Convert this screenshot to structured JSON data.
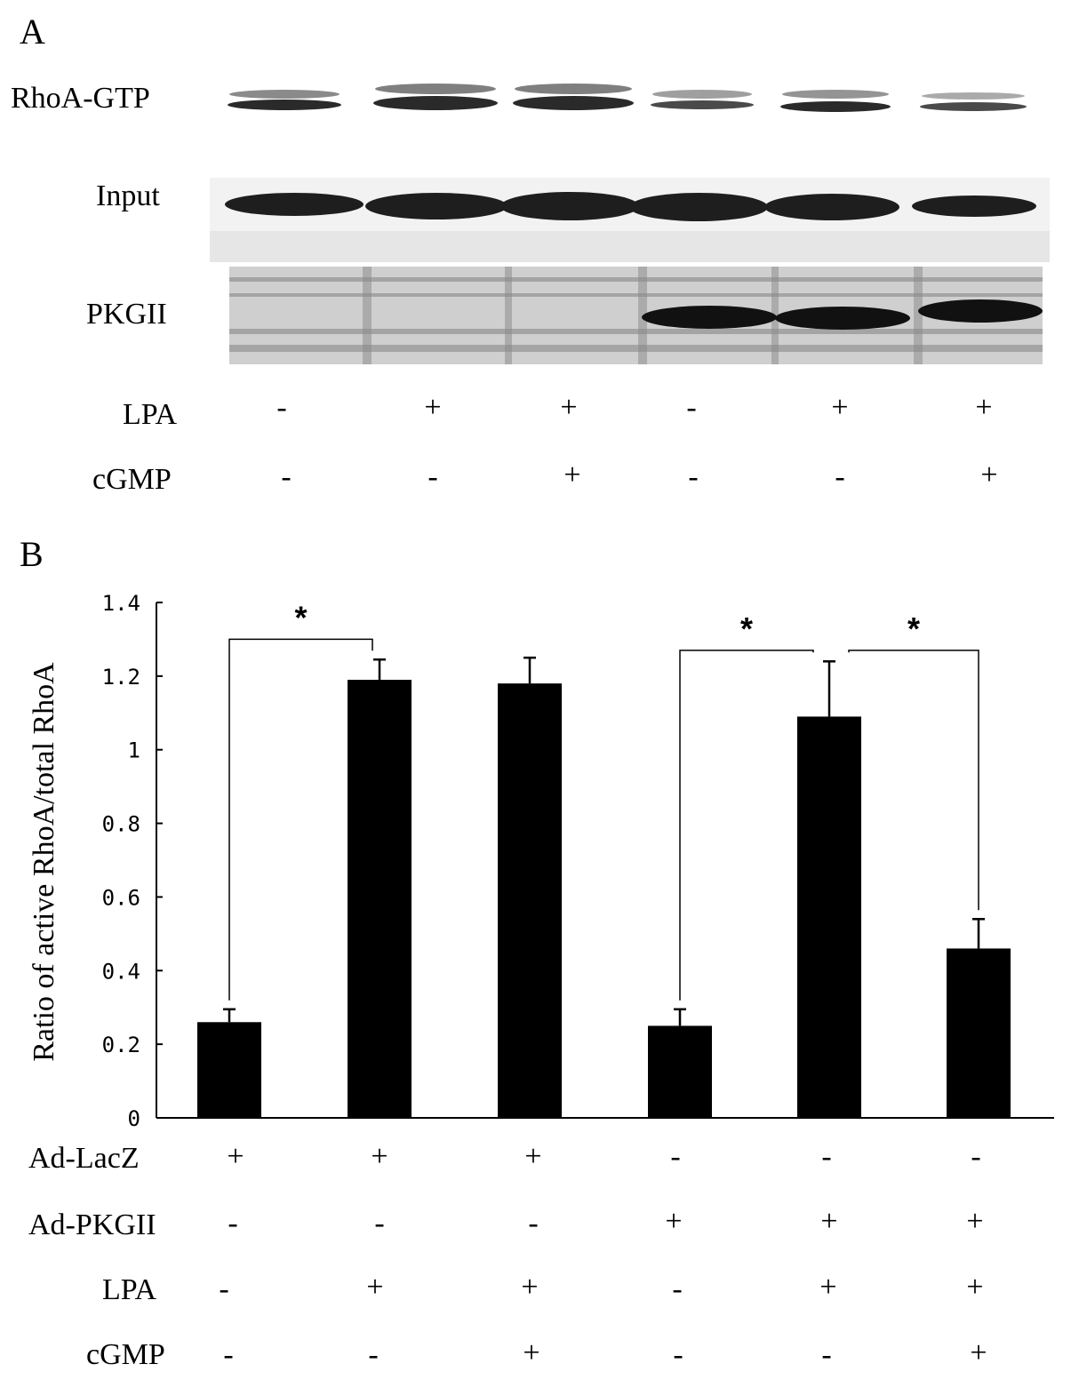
{
  "panel_a": {
    "letter": "A",
    "blot_labels": [
      "RhoA-GTP",
      "Input",
      "PKGII"
    ],
    "conditions": [
      {
        "name": "LPA",
        "values": [
          "-",
          "+",
          "+",
          "-",
          "+",
          "+"
        ]
      },
      {
        "name": "cGMP",
        "values": [
          "-",
          "-",
          "+",
          "-",
          "-",
          "+"
        ]
      }
    ]
  },
  "panel_b": {
    "letter": "B",
    "conditions": [
      {
        "name": "Ad-LacZ",
        "values": [
          "+",
          "+",
          "+",
          "-",
          "-",
          "-"
        ]
      },
      {
        "name": "Ad-PKGII",
        "values": [
          "-",
          "-",
          "-",
          "+",
          "+",
          "+"
        ]
      },
      {
        "name": "LPA",
        "values": [
          "-",
          "+",
          "+",
          "-",
          "+",
          "+"
        ]
      },
      {
        "name": "cGMP",
        "values": [
          "-",
          "-",
          "+",
          "-",
          "-",
          "+"
        ]
      }
    ]
  },
  "chart_data": {
    "type": "bar",
    "title": "",
    "xlabel": "",
    "ylabel": "Ratio of active RhoA/total RhoA",
    "ylim": [
      0,
      1.4
    ],
    "yticks": [
      "0",
      "0.2",
      "0.4",
      "0.6",
      "0.8",
      "1",
      "1.2",
      "1.4"
    ],
    "values": [
      0.26,
      1.19,
      1.18,
      0.25,
      1.09,
      0.46
    ],
    "errors": [
      0.035,
      0.055,
      0.07,
      0.045,
      0.15,
      0.08
    ],
    "significance": [
      {
        "from": 0,
        "to": 1,
        "label": "*"
      },
      {
        "from": 3,
        "to": 4,
        "label": "*"
      },
      {
        "from": 4,
        "to": 5,
        "label": "*"
      }
    ],
    "bar_color": "#000000",
    "grid": false
  }
}
